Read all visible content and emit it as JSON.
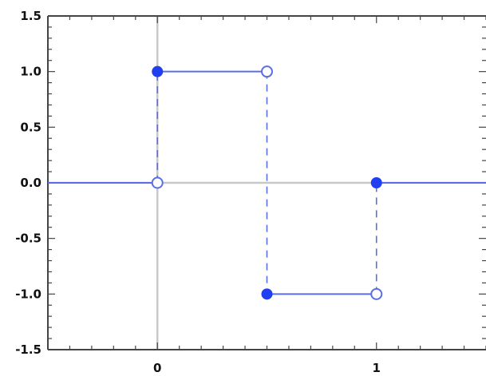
{
  "chart_data": {
    "type": "line",
    "title": "",
    "xlabel": "",
    "ylabel": "",
    "xlim": [
      -0.5,
      1.5
    ],
    "ylim": [
      -1.5,
      1.5
    ],
    "grid": false,
    "x_ticks": [
      {
        "value": 0,
        "label": "0"
      },
      {
        "value": 1,
        "label": "1"
      }
    ],
    "y_ticks": [
      {
        "value": 1.5,
        "label": "1.5"
      },
      {
        "value": 1.0,
        "label": "1.0"
      },
      {
        "value": 0.5,
        "label": "0.5"
      },
      {
        "value": 0.0,
        "label": "0.0"
      },
      {
        "value": -0.5,
        "label": "-0.5"
      },
      {
        "value": -1.0,
        "label": "-1.0"
      },
      {
        "value": -1.5,
        "label": "-1.5"
      }
    ],
    "series": [
      {
        "style": "step",
        "color": "#5b6ee6",
        "segments": [
          {
            "x": [
              -0.5,
              0
            ],
            "y": [
              0,
              0
            ]
          },
          {
            "x": [
              0,
              0.5
            ],
            "y": [
              1,
              1
            ]
          },
          {
            "x": [
              0.5,
              1
            ],
            "y": [
              -1,
              -1
            ]
          },
          {
            "x": [
              1,
              1.5
            ],
            "y": [
              0,
              0
            ]
          }
        ],
        "jumps": [
          {
            "x": 0,
            "from": 0,
            "to": 1
          },
          {
            "x": 0.5,
            "from": 1,
            "to": -1
          },
          {
            "x": 1,
            "from": -1,
            "to": 0
          }
        ],
        "closed_points": [
          {
            "x": 0,
            "y": 1
          },
          {
            "x": 0.5,
            "y": -1
          },
          {
            "x": 1,
            "y": 0
          }
        ],
        "open_points": [
          {
            "x": 0,
            "y": 0
          },
          {
            "x": 0.5,
            "y": 1
          },
          {
            "x": 1,
            "y": -1
          }
        ]
      }
    ]
  }
}
